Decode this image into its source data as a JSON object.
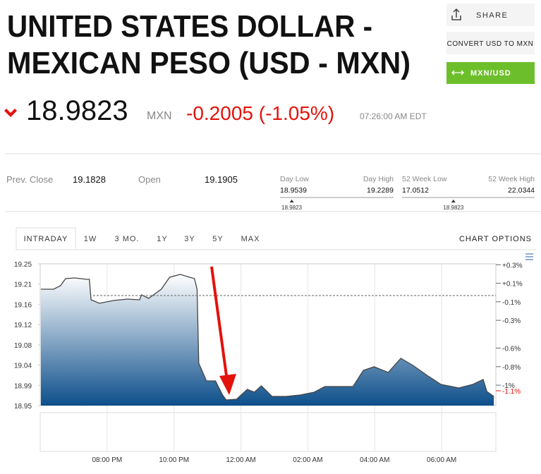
{
  "header": {
    "title": [
      "UNITED STATES DOLLAR -",
      "MEXICAN PESO (USD - MXN)"
    ]
  },
  "buttons": {
    "share": "SHARE",
    "convert": "CONVERT USD TO MXN",
    "invert": "MXN/USD"
  },
  "quote": {
    "price": 18.9823,
    "currency": "MXN",
    "change": "-0.2005 (-1.05%)",
    "time": "07:26:00 AM EDT"
  },
  "stats": {
    "prev_close": {
      "label": "Prev. Close",
      "value": 19.1828
    },
    "open": {
      "label": "Open",
      "value": 19.1905
    }
  },
  "ranges": [
    {
      "low_label": "Day Low",
      "high_label": "Day High",
      "low": 18.9539,
      "high": 19.2289,
      "current": 18.9823
    },
    {
      "low_label": "52 Week Low",
      "high_label": "52 Week High",
      "low": 17.0512,
      "high": 22.0344,
      "current": 18.9823
    }
  ],
  "tabs": [
    "INTRADAY",
    "1W",
    "3 MO.",
    "1Y",
    "3Y",
    "5Y",
    "MAX"
  ],
  "chart_options": "CHART OPTIONS",
  "chart_data": {
    "type": "area",
    "x": [
      18.02,
      18.4,
      18.61,
      18.76,
      19.03,
      19.39,
      19.47,
      19.52,
      19.77,
      20.19,
      20.61,
      20.97,
      21.03,
      21.24,
      21.62,
      21.87,
      22.19,
      22.46,
      22.61,
      22.69,
      22.74,
      22.97,
      23.24,
      23.45,
      23.56,
      23.87,
      24.19,
      24.4,
      24.61,
      24.93,
      25.35,
      25.77,
      26.19,
      26.51,
      26.93,
      27.35,
      27.66,
      27.98,
      28.4,
      28.78,
      29.14,
      29.56,
      29.98,
      30.51,
      30.93,
      31.24,
      31.35,
      31.56
    ],
    "values": [
      19.1963,
      19.1963,
      19.2037,
      19.2187,
      19.2201,
      19.2172,
      19.2172,
      19.1739,
      19.1664,
      19.1724,
      19.1754,
      19.1739,
      19.1843,
      19.1769,
      19.1963,
      19.2216,
      19.2276,
      19.2216,
      19.2187,
      19.1963,
      19.0396,
      19.0022,
      19.0022,
      18.9724,
      18.9619,
      18.9634,
      18.9843,
      18.9784,
      18.9918,
      18.9694,
      18.9694,
      18.9724,
      18.9784,
      18.9903,
      18.9903,
      18.9903,
      19.0246,
      19.0321,
      19.0201,
      19.05,
      19.0351,
      19.0142,
      18.9948,
      18.9873,
      18.9948,
      19.0052,
      18.9799,
      18.9694
    ],
    "color": "#0d4f8b",
    "xlim": [
      18,
      31.62
    ],
    "xticks": [
      {
        "value": 20,
        "label": "08:00 PM"
      },
      {
        "value": 22,
        "label": "10:00 PM"
      },
      {
        "value": 24,
        "label": "12:00 AM"
      },
      {
        "value": 26,
        "label": "02:00 AM"
      },
      {
        "value": 28,
        "label": "04:00 AM"
      },
      {
        "value": 30,
        "label": "06:00 AM"
      }
    ],
    "ylim": [
      18.95,
      19.25
    ],
    "yticks": [
      19.25,
      {
        "value": 19.2071,
        "label": "19.21"
      },
      {
        "value": 19.1643,
        "label": "19.16"
      },
      {
        "value": 19.1214,
        "label": "19.12"
      },
      {
        "value": 19.0786,
        "label": "19.08"
      },
      {
        "value": 19.0357,
        "label": "19.04"
      },
      {
        "value": 18.9929,
        "label": "18.99"
      },
      18.95
    ],
    "y2lim": [
      -1.22,
      0.31
    ],
    "y2ticks": [
      {
        "value": 0.3,
        "label": "+0.3%"
      },
      {
        "value": 0.1,
        "label": "+0.1%"
      },
      {
        "value": -0.1,
        "label": "-0.1%"
      },
      {
        "value": -0.3,
        "label": "-0.3%"
      },
      {
        "value": -0.6,
        "label": "-0.6%"
      },
      {
        "value": -0.8,
        "label": "-0.8%"
      },
      {
        "value": -1,
        "label": "-1%"
      }
    ],
    "current_change": {
      "value": -1.06,
      "label": "-1.1%",
      "color": "#e3120b"
    }
  }
}
